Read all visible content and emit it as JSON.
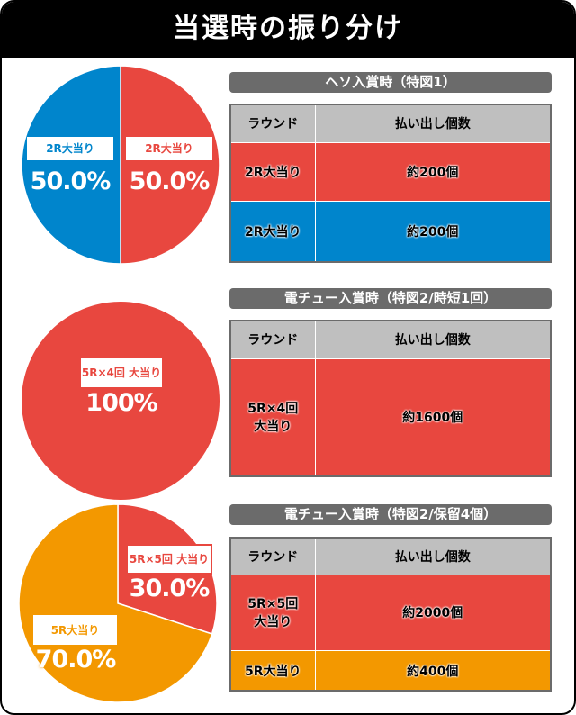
{
  "title": "当選時の振り分け",
  "colors": {
    "red": "#e8473f",
    "blue": "#0085cc",
    "orange": "#f39800",
    "header": "#bfbfbf",
    "label": "#6b6b6b"
  },
  "chart_data": [
    {
      "type": "pie",
      "slices": [
        {
          "label": "2R大当り",
          "value": 50.0,
          "display": "50.0%",
          "color": "#e8473f"
        },
        {
          "label": "2R大当り",
          "value": 50.0,
          "display": "50.0%",
          "color": "#0085cc"
        }
      ]
    },
    {
      "type": "pie",
      "slices": [
        {
          "label": "5R×4回 大当り",
          "value": 100,
          "display": "100%",
          "color": "#e8473f"
        }
      ]
    },
    {
      "type": "pie",
      "slices": [
        {
          "label": "5R×5回 大当り",
          "value": 30.0,
          "display": "30.0%",
          "color": "#e8473f"
        },
        {
          "label": "5R大当り",
          "value": 70.0,
          "display": "70.0%",
          "color": "#f39800"
        }
      ]
    }
  ],
  "tables": [
    {
      "title": "ヘソ入賞時（特図1）",
      "headers": [
        "ラウンド",
        "払い出し個数"
      ],
      "rows": [
        [
          "2R大当り",
          "約200個"
        ],
        [
          "2R大当り",
          "約200個"
        ]
      ]
    },
    {
      "title": "電チュー入賞時（特図2/時短1回）",
      "headers": [
        "ラウンド",
        "払い出し個数"
      ],
      "rows": [
        [
          "5R×4回\n大当り",
          "約1600個"
        ]
      ]
    },
    {
      "title": "電チュー入賞時（特図2/保留4個）",
      "headers": [
        "ラウンド",
        "払い出し個数"
      ],
      "rows": [
        [
          "5R×5回\n大当り",
          "約2000個"
        ],
        [
          "5R大当り",
          "約400個"
        ]
      ]
    }
  ]
}
